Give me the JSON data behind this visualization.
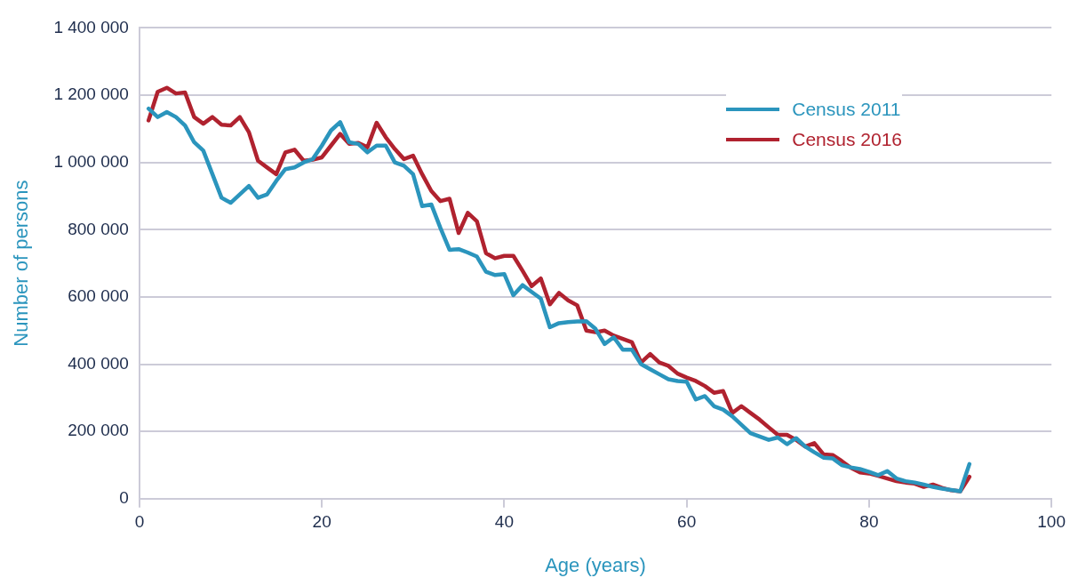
{
  "chart_data": {
    "type": "line",
    "xlabel": "Age (years)",
    "ylabel": "Number of persons",
    "x": [
      1,
      2,
      3,
      4,
      5,
      6,
      7,
      8,
      9,
      10,
      11,
      12,
      13,
      14,
      15,
      16,
      17,
      18,
      19,
      20,
      21,
      22,
      23,
      24,
      25,
      26,
      27,
      28,
      29,
      30,
      31,
      32,
      33,
      34,
      35,
      36,
      37,
      38,
      39,
      40,
      41,
      42,
      43,
      44,
      45,
      46,
      47,
      48,
      49,
      50,
      51,
      52,
      53,
      54,
      55,
      56,
      57,
      58,
      59,
      60,
      61,
      62,
      63,
      64,
      65,
      66,
      67,
      68,
      69,
      70,
      71,
      72,
      73,
      74,
      75,
      76,
      77,
      78,
      79,
      80,
      81,
      82,
      83,
      84,
      85,
      86,
      87,
      88,
      89,
      90,
      91
    ],
    "series": [
      {
        "name": "Census 2011",
        "color": "#2b95bd",
        "values": [
          1160000,
          1135000,
          1150000,
          1135000,
          1110000,
          1060000,
          1035000,
          965000,
          895000,
          880000,
          905000,
          930000,
          895000,
          905000,
          945000,
          980000,
          985000,
          1000000,
          1010000,
          1050000,
          1095000,
          1120000,
          1060000,
          1055000,
          1030000,
          1050000,
          1050000,
          1000000,
          990000,
          965000,
          870000,
          875000,
          805000,
          740000,
          742000,
          732000,
          720000,
          675000,
          665000,
          668000,
          605000,
          635000,
          615000,
          595000,
          510000,
          522000,
          525000,
          527000,
          528000,
          505000,
          460000,
          480000,
          443000,
          443000,
          400000,
          385000,
          370000,
          355000,
          350000,
          348000,
          295000,
          305000,
          275000,
          265000,
          245000,
          220000,
          195000,
          185000,
          175000,
          182000,
          162000,
          180000,
          155000,
          138000,
          122000,
          120000,
          100000,
          93000,
          88000,
          80000,
          70000,
          82000,
          60000,
          52000,
          48000,
          42000,
          35000,
          30000,
          26000,
          22000,
          103000
        ]
      },
      {
        "name": "Census 2016",
        "color": "#b0222f",
        "values": [
          1125000,
          1210000,
          1222000,
          1205000,
          1208000,
          1135000,
          1115000,
          1135000,
          1112000,
          1110000,
          1135000,
          1090000,
          1005000,
          985000,
          965000,
          1030000,
          1038000,
          1005000,
          1008000,
          1015000,
          1050000,
          1085000,
          1055000,
          1058000,
          1045000,
          1118000,
          1075000,
          1040000,
          1010000,
          1020000,
          965000,
          915000,
          885000,
          892000,
          790000,
          850000,
          825000,
          730000,
          715000,
          722000,
          722000,
          678000,
          632000,
          655000,
          578000,
          612000,
          590000,
          575000,
          500000,
          495000,
          500000,
          485000,
          475000,
          465000,
          405000,
          430000,
          405000,
          395000,
          372000,
          360000,
          350000,
          335000,
          315000,
          320000,
          255000,
          275000,
          255000,
          235000,
          212000,
          190000,
          190000,
          175000,
          155000,
          165000,
          132000,
          130000,
          112000,
          92000,
          78000,
          75000,
          68000,
          60000,
          52000,
          48000,
          45000,
          35000,
          42000,
          32000,
          25000,
          22000,
          65000
        ]
      }
    ],
    "xlim": [
      0,
      100
    ],
    "xticks": [
      0,
      20,
      40,
      60,
      80,
      100
    ],
    "ylim": [
      0,
      1400000
    ],
    "yticks": [
      0,
      {
        "value": 200000,
        "label": "200 000"
      },
      {
        "value": 400000,
        "label": "400 000"
      },
      {
        "value": 600000,
        "label": "600 000"
      },
      {
        "value": 800000,
        "label": "800 000"
      },
      {
        "value": 1000000,
        "label": "1 000 000"
      },
      {
        "value": 1200000,
        "label": "1 200 000"
      },
      {
        "value": 1400000,
        "label": "1 400 000"
      }
    ],
    "grid": "y",
    "legend": "top right",
    "marker": "none",
    "line_style": "solid"
  }
}
